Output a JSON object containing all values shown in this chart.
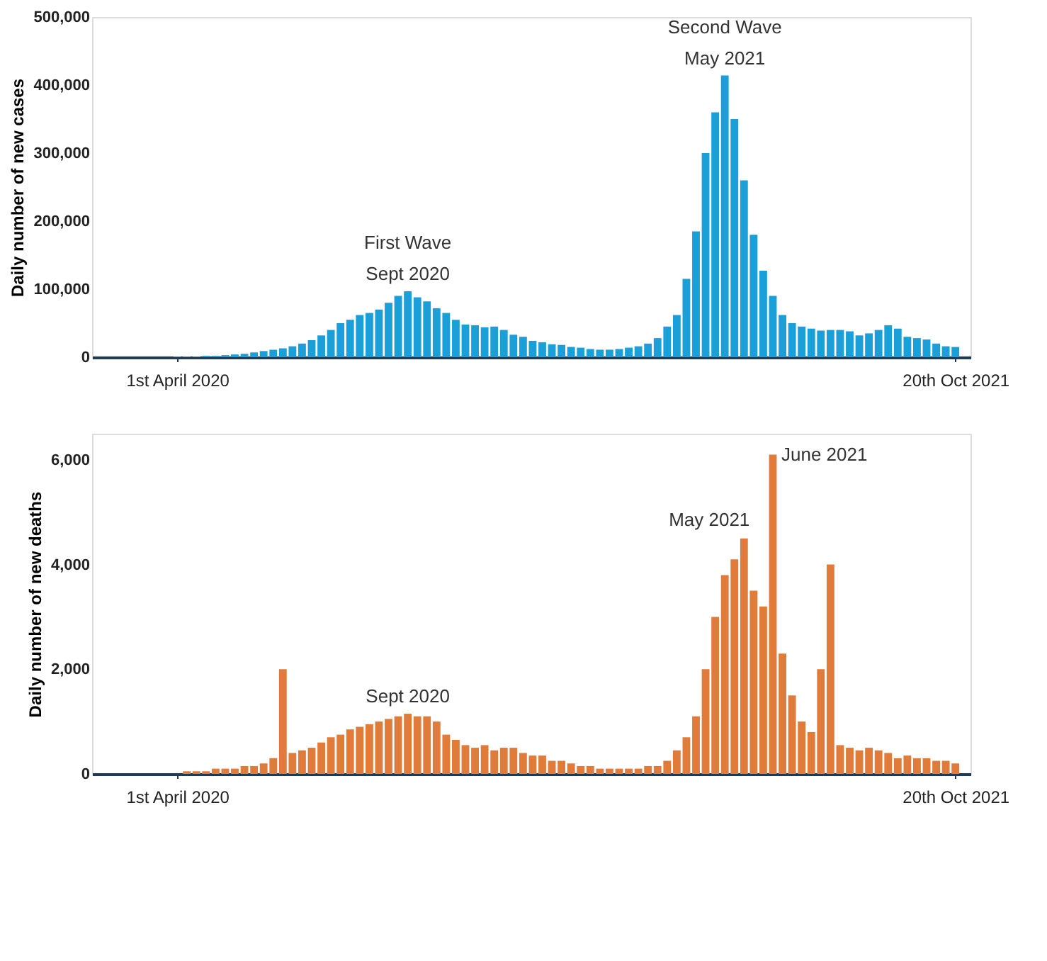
{
  "chart_data": [
    {
      "type": "bar",
      "ylabel": "Daily number of new cases",
      "xlim": [
        "2020-01-30",
        "2021-10-31"
      ],
      "ylim": [
        0,
        500000
      ],
      "yticks": [
        {
          "value": 0,
          "label": "0"
        },
        {
          "value": 100000,
          "label": "100,000"
        },
        {
          "value": 200000,
          "label": "200,000"
        },
        {
          "value": 300000,
          "label": "300,000"
        },
        {
          "value": 400000,
          "label": "400,000"
        },
        {
          "value": 500000,
          "label": "500,000"
        }
      ],
      "xticks": [
        {
          "value": "2020-04-01",
          "label": "1st April 2020"
        },
        {
          "value": "2021-10-20",
          "label": "20th Oct 2021"
        }
      ],
      "grid": false,
      "x": [
        "2020-03-04",
        "2020-03-11",
        "2020-03-18",
        "2020-03-25",
        "2020-04-01",
        "2020-04-08",
        "2020-04-15",
        "2020-04-22",
        "2020-04-29",
        "2020-05-06",
        "2020-05-13",
        "2020-05-20",
        "2020-05-27",
        "2020-06-03",
        "2020-06-10",
        "2020-06-17",
        "2020-06-24",
        "2020-07-01",
        "2020-07-08",
        "2020-07-15",
        "2020-07-22",
        "2020-07-29",
        "2020-08-05",
        "2020-08-12",
        "2020-08-19",
        "2020-08-26",
        "2020-09-02",
        "2020-09-09",
        "2020-09-16",
        "2020-09-23",
        "2020-09-30",
        "2020-10-07",
        "2020-10-14",
        "2020-10-21",
        "2020-10-28",
        "2020-11-04",
        "2020-11-11",
        "2020-11-18",
        "2020-11-25",
        "2020-12-02",
        "2020-12-09",
        "2020-12-16",
        "2020-12-23",
        "2020-12-30",
        "2021-01-06",
        "2021-01-13",
        "2021-01-20",
        "2021-01-27",
        "2021-02-03",
        "2021-02-10",
        "2021-02-17",
        "2021-02-24",
        "2021-03-03",
        "2021-03-10",
        "2021-03-17",
        "2021-03-24",
        "2021-03-31",
        "2021-04-07",
        "2021-04-14",
        "2021-04-21",
        "2021-04-28",
        "2021-05-05",
        "2021-05-12",
        "2021-05-19",
        "2021-05-26",
        "2021-06-02",
        "2021-06-09",
        "2021-06-16",
        "2021-06-23",
        "2021-06-30",
        "2021-07-07",
        "2021-07-14",
        "2021-07-21",
        "2021-07-28",
        "2021-08-04",
        "2021-08-11",
        "2021-08-18",
        "2021-08-25",
        "2021-09-01",
        "2021-09-08",
        "2021-09-15",
        "2021-09-22",
        "2021-09-29",
        "2021-10-06",
        "2021-10-13",
        "2021-10-20"
      ],
      "series": [
        {
          "color": "#1a9fd9",
          "values": [
            0,
            0,
            0,
            0,
            1000,
            1000,
            1000,
            2000,
            2000,
            3000,
            4000,
            5000,
            7000,
            9000,
            11000,
            13000,
            16000,
            20000,
            25000,
            32000,
            40000,
            50000,
            55000,
            62000,
            65000,
            70000,
            80000,
            90000,
            97000,
            88000,
            82000,
            72000,
            65000,
            55000,
            48000,
            47000,
            44000,
            45000,
            40000,
            33000,
            30000,
            24000,
            22000,
            19000,
            18000,
            15000,
            14000,
            12000,
            11000,
            11000,
            12000,
            14000,
            16000,
            20000,
            28000,
            45000,
            62000,
            115000,
            185000,
            300000,
            360000,
            414000,
            350000,
            260000,
            180000,
            127000,
            90000,
            62000,
            50000,
            45000,
            42000,
            39000,
            40000,
            40000,
            38000,
            32000,
            35000,
            40000,
            47000,
            42000,
            30000,
            28000,
            26000,
            20000,
            16000,
            15000
          ]
        }
      ],
      "annotations": [
        {
          "text": "First Wave",
          "x": "2020-09-16",
          "y": 97000
        },
        {
          "text": "Sept 2020",
          "x": "2020-09-16",
          "y": 97000
        },
        {
          "text": "Second Wave",
          "x": "2021-05-05",
          "y": 414000
        },
        {
          "text": "May 2021",
          "x": "2021-05-05",
          "y": 414000
        }
      ]
    },
    {
      "type": "bar",
      "ylabel": "Daily number of new deaths",
      "xlim": [
        "2020-01-30",
        "2021-10-31"
      ],
      "ylim": [
        0,
        6500
      ],
      "yticks": [
        {
          "value": 0,
          "label": "0"
        },
        {
          "value": 2000,
          "label": "2,000"
        },
        {
          "value": 4000,
          "label": "4,000"
        },
        {
          "value": 6000,
          "label": "6,000"
        }
      ],
      "xticks": [
        {
          "value": "2020-04-01",
          "label": "1st April 2020"
        },
        {
          "value": "2021-10-20",
          "label": "20th Oct 2021"
        }
      ],
      "grid": false,
      "x": [
        "2020-04-01",
        "2020-04-08",
        "2020-04-15",
        "2020-04-22",
        "2020-04-29",
        "2020-05-06",
        "2020-05-13",
        "2020-05-20",
        "2020-05-27",
        "2020-06-03",
        "2020-06-10",
        "2020-06-17",
        "2020-06-24",
        "2020-07-01",
        "2020-07-08",
        "2020-07-15",
        "2020-07-22",
        "2020-07-29",
        "2020-08-05",
        "2020-08-12",
        "2020-08-19",
        "2020-08-26",
        "2020-09-02",
        "2020-09-09",
        "2020-09-16",
        "2020-09-23",
        "2020-09-30",
        "2020-10-07",
        "2020-10-14",
        "2020-10-21",
        "2020-10-28",
        "2020-11-04",
        "2020-11-11",
        "2020-11-18",
        "2020-11-25",
        "2020-12-02",
        "2020-12-09",
        "2020-12-16",
        "2020-12-23",
        "2020-12-30",
        "2021-01-06",
        "2021-01-13",
        "2021-01-20",
        "2021-01-27",
        "2021-02-03",
        "2021-02-10",
        "2021-02-17",
        "2021-02-24",
        "2021-03-03",
        "2021-03-10",
        "2021-03-17",
        "2021-03-24",
        "2021-03-31",
        "2021-04-07",
        "2021-04-14",
        "2021-04-21",
        "2021-04-28",
        "2021-05-05",
        "2021-05-12",
        "2021-05-19",
        "2021-05-26",
        "2021-06-02",
        "2021-06-09",
        "2021-06-16",
        "2021-06-23",
        "2021-06-30",
        "2021-07-07",
        "2021-07-14",
        "2021-07-21",
        "2021-07-28",
        "2021-08-04",
        "2021-08-11",
        "2021-08-18",
        "2021-08-25",
        "2021-09-01",
        "2021-09-08",
        "2021-09-15",
        "2021-09-22",
        "2021-09-29",
        "2021-10-06",
        "2021-10-13",
        "2021-10-20"
      ],
      "series": [
        {
          "color": "#e07b39",
          "values": [
            0,
            50,
            50,
            50,
            100,
            100,
            100,
            150,
            150,
            200,
            300,
            2000,
            400,
            450,
            500,
            600,
            700,
            750,
            850,
            900,
            950,
            1000,
            1050,
            1100,
            1150,
            1100,
            1100,
            1000,
            750,
            650,
            550,
            500,
            550,
            450,
            500,
            500,
            400,
            350,
            350,
            250,
            250,
            200,
            150,
            150,
            100,
            100,
            100,
            100,
            100,
            150,
            150,
            250,
            450,
            700,
            1100,
            2000,
            3000,
            3800,
            4100,
            4500,
            3500,
            3200,
            6100,
            2300,
            1500,
            1000,
            800,
            2000,
            4000,
            550,
            500,
            450,
            500,
            450,
            400,
            300,
            350,
            300,
            300,
            250,
            250,
            200
          ]
        }
      ],
      "annotations": [
        {
          "text": "Sept 2020",
          "x": "2020-09-16",
          "y": 1150
        },
        {
          "text": "May 2021",
          "x": "2021-05-19",
          "y": 4500
        },
        {
          "text": "June 2021",
          "x": "2021-06-09",
          "y": 6100
        }
      ]
    }
  ]
}
